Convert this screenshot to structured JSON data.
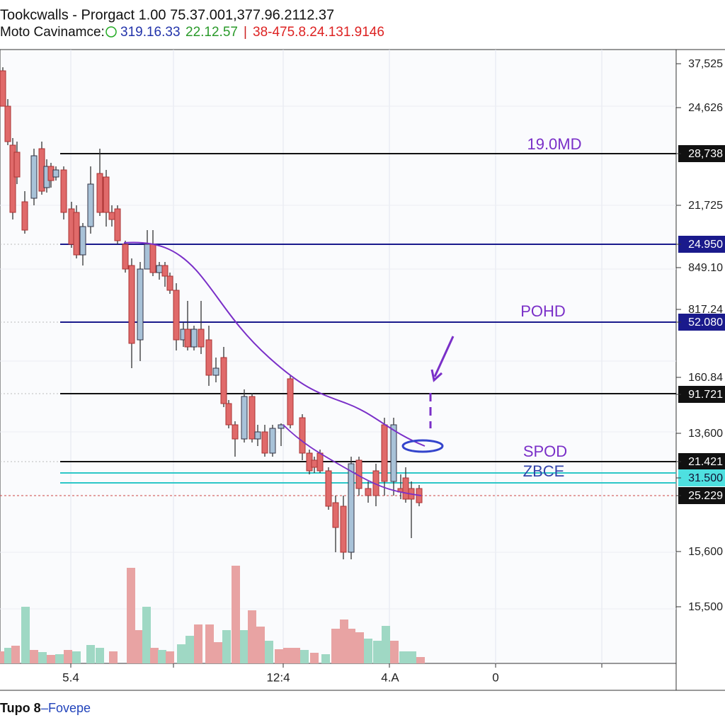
{
  "header": {
    "title": "Tookcwalls - Prorgact 1.00 75.37.001,377.96.2112.37",
    "label": "Moto Cavinamce:",
    "values": [
      "319.16.33",
      "22.12.57",
      "|",
      "38-475.8.24.131.9146"
    ]
  },
  "price_axis": [
    "37,525",
    "24,626",
    "28,738",
    "21,725",
    "24.950",
    "849.10",
    "817.24",
    "52.080",
    "160.84",
    "91.721",
    "13,600",
    "21.421",
    "31.500",
    "25.229",
    "15,600",
    "15,500"
  ],
  "annotations": [
    "19.0MD",
    "POHD",
    "SPOD",
    "ZBCE"
  ],
  "time_axis": [
    "5.4",
    "12:4",
    "4.A",
    "0"
  ],
  "footer": {
    "name": "Tupo 8",
    "link": "–Fovepe"
  }
}
